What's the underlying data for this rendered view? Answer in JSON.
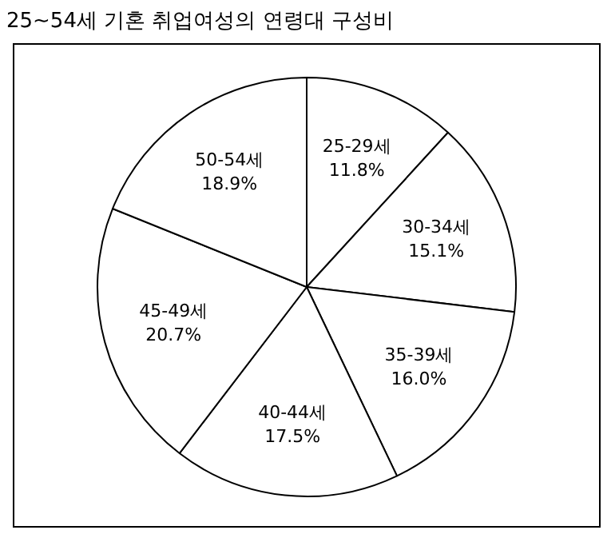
{
  "chart_data": {
    "type": "pie",
    "title": "25~54세 기혼 취업여성의 연령대 구성비",
    "categories": [
      "25-29세",
      "30-34세",
      "35-39세",
      "40-44세",
      "45-49세",
      "50-54세"
    ],
    "values": [
      11.8,
      15.1,
      16.0,
      17.5,
      20.7,
      18.9
    ],
    "value_labels": [
      "11.8%",
      "15.1%",
      "16.0%",
      "17.5%",
      "20.7%",
      "18.9%"
    ],
    "colors": [
      "#ffffff",
      "#ffffff",
      "#ffffff",
      "#ffffff",
      "#ffffff",
      "#ffffff"
    ],
    "legend": false
  }
}
